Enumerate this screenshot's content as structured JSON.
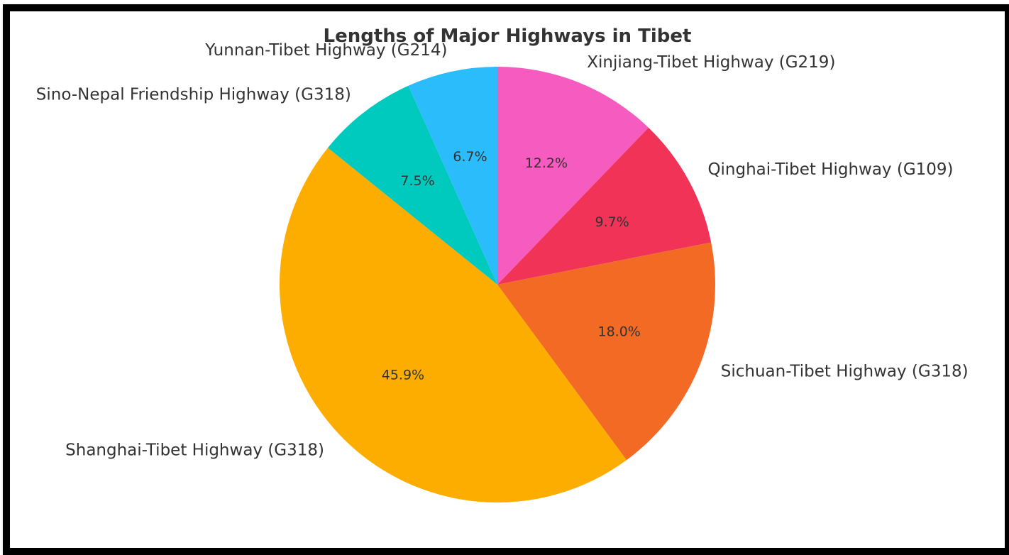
{
  "chart_data": {
    "type": "pie",
    "title": "Lengths of Major Highways in Tibet",
    "categories": [
      "Xinjiang-Tibet Highway (G219)",
      "Qinghai-Tibet Highway (G109)",
      "Sichuan-Tibet Highway (G318)",
      "Shanghai-Tibet Highway (G318)",
      "Sino-Nepal Friendship Highway (G318)",
      "Yunnan-Tibet Highway (G214)"
    ],
    "values": [
      12.2,
      9.7,
      18.0,
      45.9,
      7.5,
      6.7
    ],
    "value_labels": [
      "12.2%",
      "9.7%",
      "18.0%",
      "45.9%",
      "7.5%",
      "6.7%"
    ],
    "colors": [
      "#f65bbf",
      "#f23358",
      "#f26a23",
      "#fdad00",
      "#00c9be",
      "#2bbcfc"
    ],
    "start_angle_deg": 90,
    "direction": "clockwise"
  }
}
